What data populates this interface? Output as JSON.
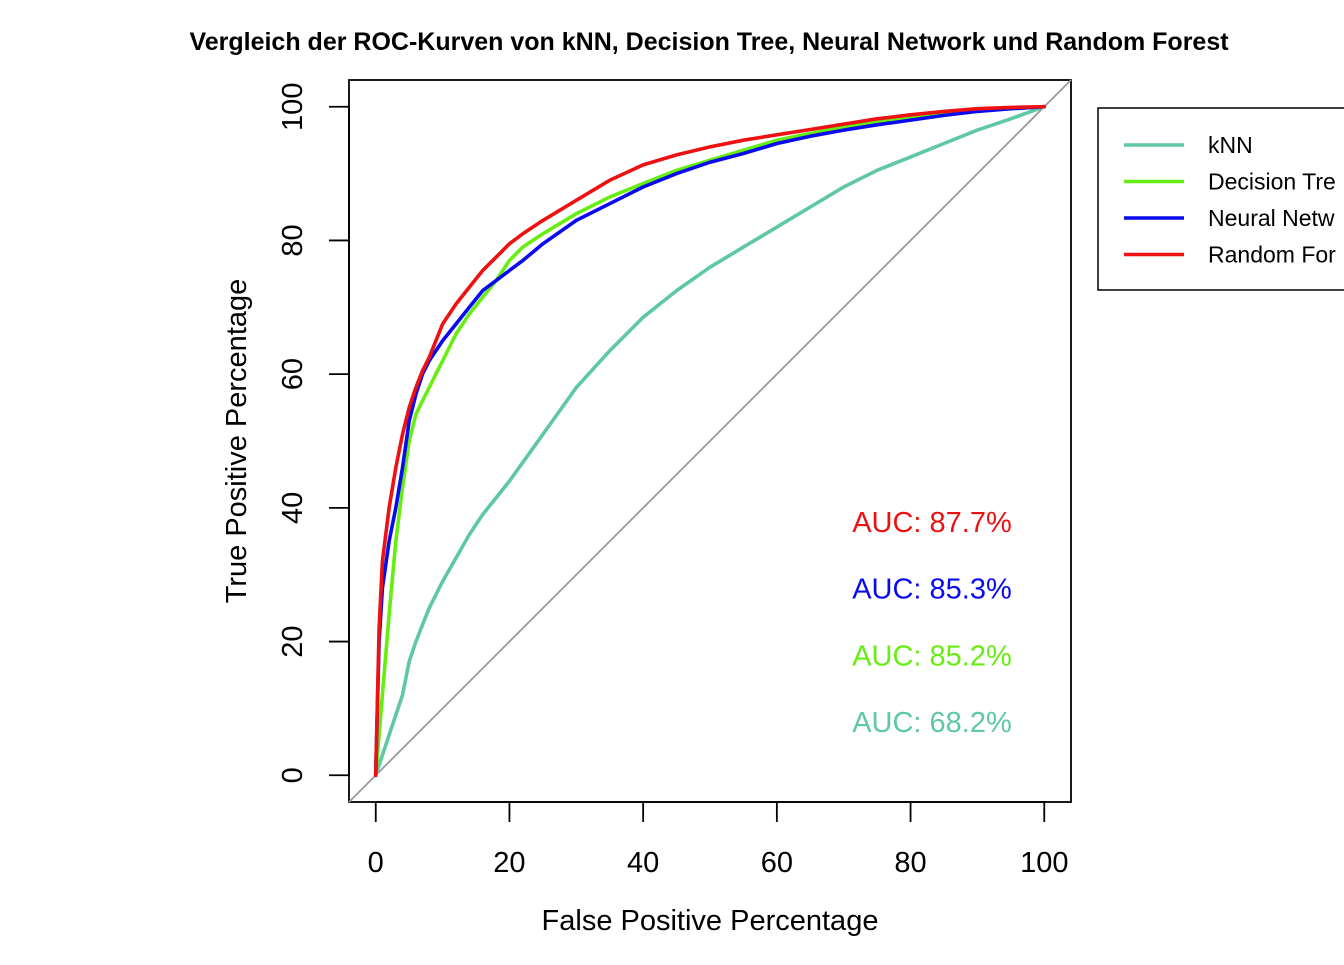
{
  "chart_data": {
    "type": "line",
    "title": "Vergleich der ROC-Kurven von kNN, Decision Tree, Neural Network und Random Forest",
    "xlabel": "False Positive Percentage",
    "ylabel": "True Positive Percentage",
    "xlim": [
      -4,
      104
    ],
    "ylim": [
      -4,
      104
    ],
    "xticks": [
      "0",
      "20",
      "40",
      "60",
      "80",
      "100"
    ],
    "yticks": [
      "0",
      "20",
      "40",
      "60",
      "80",
      "100"
    ],
    "grid": false,
    "legend_position": "right, partially cut off",
    "legend": [
      "kNN",
      "Decision Tre",
      "Neural Netw",
      "Random For"
    ],
    "reference_line": {
      "x": [
        -4,
        104
      ],
      "y": [
        -4,
        104
      ],
      "color": "#999999"
    },
    "series": [
      {
        "name": "kNN",
        "color": "#5ec7a4",
        "x": [
          0,
          1,
          2,
          3,
          4,
          5,
          6,
          7,
          8,
          10,
          12,
          14,
          16,
          18,
          20,
          25,
          30,
          35,
          40,
          45,
          50,
          55,
          60,
          65,
          70,
          75,
          80,
          85,
          90,
          95,
          100
        ],
        "y": [
          0,
          3,
          6,
          9,
          12,
          17,
          20,
          22.5,
          25,
          29,
          32.5,
          36,
          39,
          41.5,
          44,
          51,
          58,
          63.5,
          68.5,
          72.5,
          76,
          79,
          82,
          85,
          88,
          90.5,
          92.5,
          94.5,
          96.5,
          98.2,
          100
        ]
      },
      {
        "name": "Decision Tree",
        "color": "#66ee11",
        "x": [
          0,
          1,
          2,
          3,
          4,
          5,
          6,
          7,
          8,
          9,
          10,
          12,
          14,
          16,
          18,
          20,
          22,
          25,
          30,
          35,
          40,
          45,
          50,
          55,
          60,
          65,
          70,
          75,
          80,
          85,
          90,
          95,
          100
        ],
        "y": [
          0,
          12,
          24,
          35,
          43,
          50,
          54,
          56,
          58,
          60,
          62,
          66,
          69,
          71.5,
          74,
          77,
          79,
          81,
          84,
          86.5,
          88.5,
          90.5,
          92,
          93.5,
          95,
          96,
          97,
          97.8,
          98.5,
          99,
          99.4,
          99.7,
          100
        ]
      },
      {
        "name": "Neural Network",
        "color": "#0a0aee",
        "x": [
          0,
          0.5,
          1,
          2,
          3,
          4,
          5,
          6,
          7,
          8,
          9,
          10,
          12,
          14,
          16,
          18,
          20,
          22,
          25,
          30,
          35,
          40,
          45,
          50,
          55,
          60,
          65,
          70,
          75,
          80,
          85,
          90,
          95,
          100
        ],
        "y": [
          0,
          20,
          28,
          35,
          40,
          46,
          53,
          57,
          60,
          62,
          63.5,
          65,
          67.5,
          70,
          72.5,
          74,
          75.5,
          77,
          79.5,
          83,
          85.5,
          88,
          90,
          91.7,
          93,
          94.5,
          95.6,
          96.5,
          97.3,
          98,
          98.7,
          99.3,
          99.7,
          100
        ]
      },
      {
        "name": "Random Forest",
        "color": "#ee1111",
        "x": [
          0,
          0.5,
          1,
          2,
          3,
          4,
          5,
          6,
          7,
          8,
          9,
          10,
          12,
          14,
          16,
          18,
          20,
          22,
          25,
          30,
          35,
          40,
          45,
          50,
          55,
          60,
          65,
          70,
          75,
          80,
          85,
          90,
          95,
          100
        ],
        "y": [
          0,
          22,
          32,
          40,
          46,
          51,
          55,
          58,
          60.5,
          62.5,
          65,
          67.5,
          70.5,
          73,
          75.5,
          77.5,
          79.5,
          81,
          83,
          86,
          89,
          91.3,
          92.8,
          94,
          95,
          95.8,
          96.6,
          97.4,
          98.2,
          98.8,
          99.3,
          99.7,
          99.9,
          100
        ]
      }
    ],
    "annotations": [
      {
        "text": "AUC: 87.7%",
        "color": "#ee1111"
      },
      {
        "text": "AUC: 85.3%",
        "color": "#0a0aee"
      },
      {
        "text": "AUC: 85.2%",
        "color": "#66ee11"
      },
      {
        "text": "AUC: 68.2%",
        "color": "#5ec7a4"
      }
    ]
  }
}
